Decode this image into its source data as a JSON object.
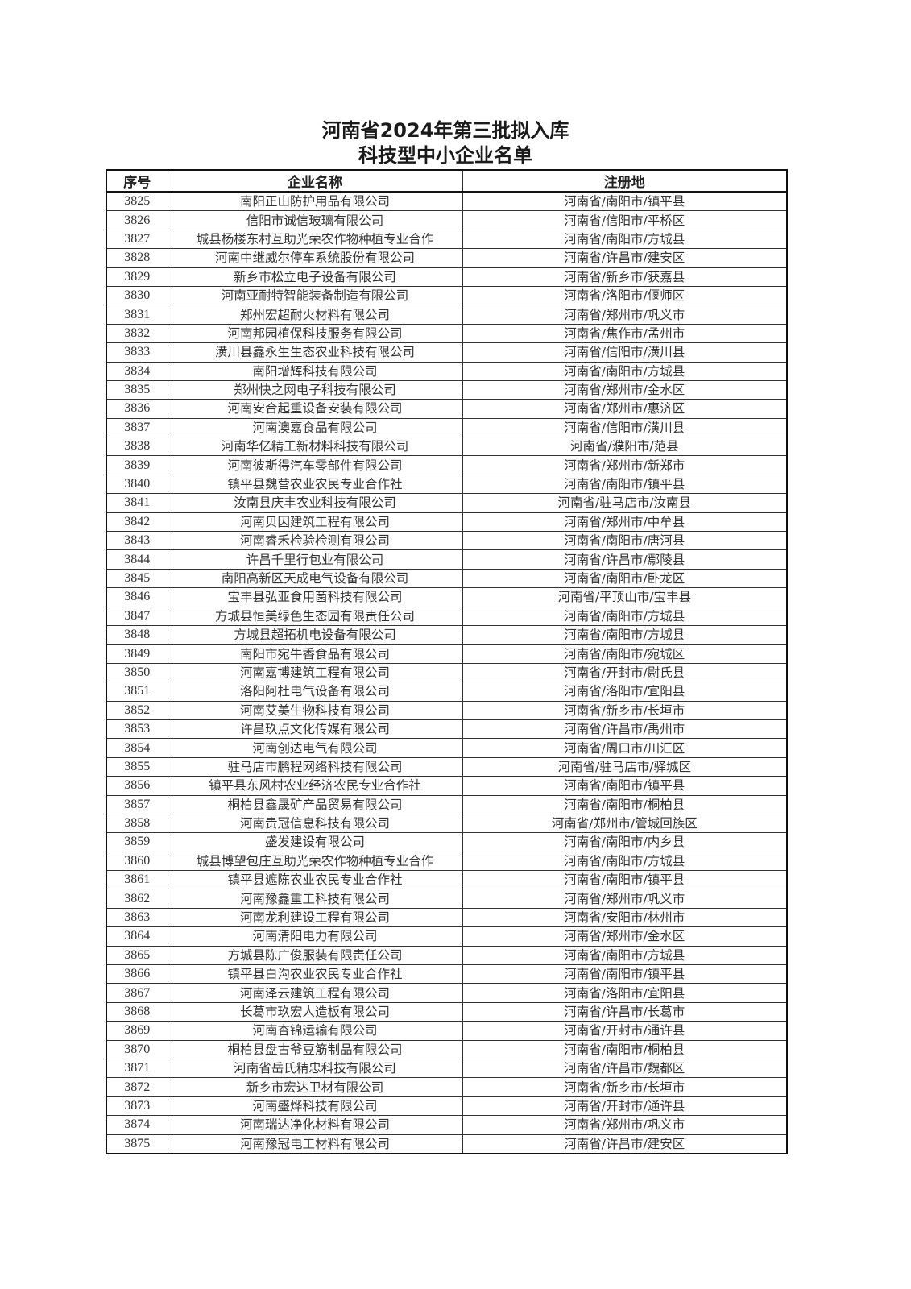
{
  "title": {
    "line1": "河南省2024年第三批拟入库",
    "line2": "科技型中小企业名单"
  },
  "table": {
    "headers": [
      "序号",
      "企业名称",
      "注册地"
    ],
    "rows": [
      [
        "3825",
        "南阳正山防护用品有限公司",
        "河南省/南阳市/镇平县"
      ],
      [
        "3826",
        "信阳市诚信玻璃有限公司",
        "河南省/信阳市/平桥区"
      ],
      [
        "3827",
        "城县杨楼东村互助光荣农作物种植专业合作",
        "河南省/南阳市/方城县"
      ],
      [
        "3828",
        "河南中继威尔停车系统股份有限公司",
        "河南省/许昌市/建安区"
      ],
      [
        "3829",
        "新乡市松立电子设备有限公司",
        "河南省/新乡市/获嘉县"
      ],
      [
        "3830",
        "河南亚耐特智能装备制造有限公司",
        "河南省/洛阳市/偃师区"
      ],
      [
        "3831",
        "郑州宏超耐火材料有限公司",
        "河南省/郑州市/巩义市"
      ],
      [
        "3832",
        "河南邦园植保科技服务有限公司",
        "河南省/焦作市/孟州市"
      ],
      [
        "3833",
        "潢川县鑫永生生态农业科技有限公司",
        "河南省/信阳市/潢川县"
      ],
      [
        "3834",
        "南阳增辉科技有限公司",
        "河南省/南阳市/方城县"
      ],
      [
        "3835",
        "郑州快之网电子科技有限公司",
        "河南省/郑州市/金水区"
      ],
      [
        "3836",
        "河南安合起重设备安装有限公司",
        "河南省/郑州市/惠济区"
      ],
      [
        "3837",
        "河南澳嘉食品有限公司",
        "河南省/信阳市/潢川县"
      ],
      [
        "3838",
        "河南华亿精工新材料科技有限公司",
        "河南省/濮阳市/范县"
      ],
      [
        "3839",
        "河南彼斯得汽车零部件有限公司",
        "河南省/郑州市/新郑市"
      ],
      [
        "3840",
        "镇平县魏营农业农民专业合作社",
        "河南省/南阳市/镇平县"
      ],
      [
        "3841",
        "汝南县庆丰农业科技有限公司",
        "河南省/驻马店市/汝南县"
      ],
      [
        "3842",
        "河南贝因建筑工程有限公司",
        "河南省/郑州市/中牟县"
      ],
      [
        "3843",
        "河南睿禾检验检测有限公司",
        "河南省/南阳市/唐河县"
      ],
      [
        "3844",
        "许昌千里行包业有限公司",
        "河南省/许昌市/鄢陵县"
      ],
      [
        "3845",
        "南阳高新区天成电气设备有限公司",
        "河南省/南阳市/卧龙区"
      ],
      [
        "3846",
        "宝丰县弘亚食用菌科技有限公司",
        "河南省/平顶山市/宝丰县"
      ],
      [
        "3847",
        "方城县恒美绿色生态园有限责任公司",
        "河南省/南阳市/方城县"
      ],
      [
        "3848",
        "方城县超拓机电设备有限公司",
        "河南省/南阳市/方城县"
      ],
      [
        "3849",
        "南阳市宛牛香食品有限公司",
        "河南省/南阳市/宛城区"
      ],
      [
        "3850",
        "河南嘉博建筑工程有限公司",
        "河南省/开封市/尉氏县"
      ],
      [
        "3851",
        "洛阳阿杜电气设备有限公司",
        "河南省/洛阳市/宜阳县"
      ],
      [
        "3852",
        "河南艾美生物科技有限公司",
        "河南省/新乡市/长垣市"
      ],
      [
        "3853",
        "许昌玖点文化传媒有限公司",
        "河南省/许昌市/禹州市"
      ],
      [
        "3854",
        "河南创达电气有限公司",
        "河南省/周口市/川汇区"
      ],
      [
        "3855",
        "驻马店市鹏程网络科技有限公司",
        "河南省/驻马店市/驿城区"
      ],
      [
        "3856",
        "镇平县东风村农业经济农民专业合作社",
        "河南省/南阳市/镇平县"
      ],
      [
        "3857",
        "桐柏县鑫晟矿产品贸易有限公司",
        "河南省/南阳市/桐柏县"
      ],
      [
        "3858",
        "河南贵冠信息科技有限公司",
        "河南省/郑州市/管城回族区"
      ],
      [
        "3859",
        "盛发建设有限公司",
        "河南省/南阳市/内乡县"
      ],
      [
        "3860",
        "城县博望包庄互助光荣农作物种植专业合作",
        "河南省/南阳市/方城县"
      ],
      [
        "3861",
        "镇平县遮陈农业农民专业合作社",
        "河南省/南阳市/镇平县"
      ],
      [
        "3862",
        "河南豫鑫重工科技有限公司",
        "河南省/郑州市/巩义市"
      ],
      [
        "3863",
        "河南龙利建设工程有限公司",
        "河南省/安阳市/林州市"
      ],
      [
        "3864",
        "河南清阳电力有限公司",
        "河南省/郑州市/金水区"
      ],
      [
        "3865",
        "方城县陈广俊服装有限责任公司",
        "河南省/南阳市/方城县"
      ],
      [
        "3866",
        "镇平县白沟农业农民专业合作社",
        "河南省/南阳市/镇平县"
      ],
      [
        "3867",
        "河南泽云建筑工程有限公司",
        "河南省/洛阳市/宜阳县"
      ],
      [
        "3868",
        "长葛市玖宏人造板有限公司",
        "河南省/许昌市/长葛市"
      ],
      [
        "3869",
        "河南杏锦运输有限公司",
        "河南省/开封市/通许县"
      ],
      [
        "3870",
        "桐柏县盘古爷豆筋制品有限公司",
        "河南省/南阳市/桐柏县"
      ],
      [
        "3871",
        "河南省岳氏精忠科技有限公司",
        "河南省/许昌市/魏都区"
      ],
      [
        "3872",
        "新乡市宏达卫材有限公司",
        "河南省/新乡市/长垣市"
      ],
      [
        "3873",
        "河南盛烨科技有限公司",
        "河南省/开封市/通许县"
      ],
      [
        "3874",
        "河南瑞达净化材料有限公司",
        "河南省/郑州市/巩义市"
      ],
      [
        "3875",
        "河南豫冠电工材料有限公司",
        "河南省/许昌市/建安区"
      ]
    ]
  }
}
